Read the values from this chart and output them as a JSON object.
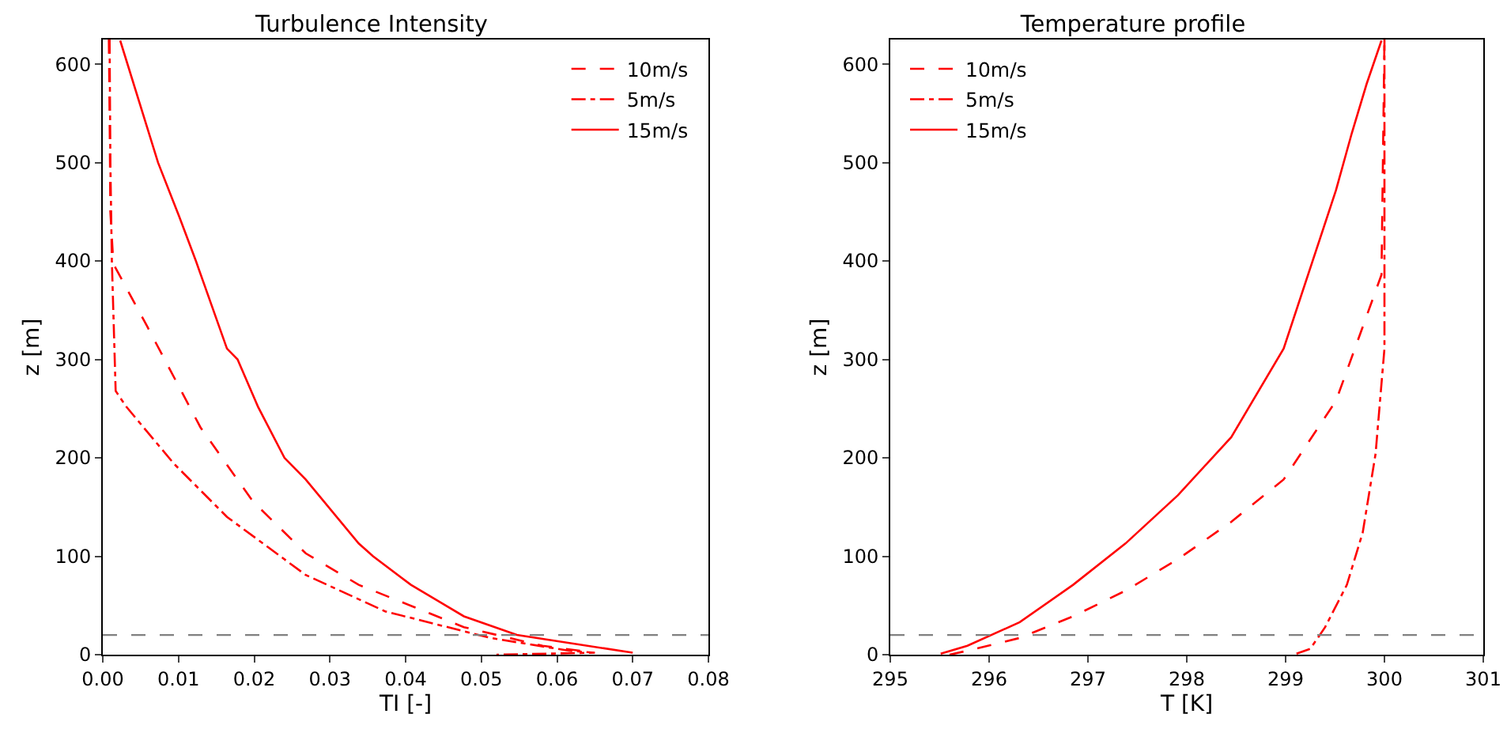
{
  "chart_data": [
    {
      "type": "line",
      "title": "Turbulence Intensity",
      "xlabel": "TI [-]",
      "ylabel": "z [m]",
      "xlim": [
        0,
        0.08
      ],
      "xticks": [
        {
          "value": 0,
          "label": "0.00"
        },
        {
          "value": 0.01,
          "label": "0.01"
        },
        {
          "value": 0.02,
          "label": "0.02"
        },
        {
          "value": 0.03,
          "label": "0.03"
        },
        {
          "value": 0.04,
          "label": "0.04"
        },
        {
          "value": 0.05,
          "label": "0.05"
        },
        {
          "value": 0.06,
          "label": "0.06"
        },
        {
          "value": 0.07,
          "label": "0.07"
        },
        {
          "value": 0.08,
          "label": "0.08"
        }
      ],
      "ylim": [
        0,
        625
      ],
      "yticks": [
        0,
        100,
        200,
        300,
        400,
        500,
        600
      ],
      "grid": false,
      "legend": "top right",
      "ref_lines": [
        {
          "axis": "y",
          "value": 20,
          "color": "#808080",
          "line_style": "dashed"
        }
      ],
      "series": [
        {
          "name": "10m/s",
          "color": "#ff0000",
          "line_style": "dashed",
          "x": [
            0.0008,
            0.0009,
            0.001,
            0.0014,
            0.0059,
            0.0129,
            0.0198,
            0.0268,
            0.0338,
            0.0477,
            0.0581,
            0.064
          ],
          "values": [
            625,
            550,
            450,
            397,
            333,
            231,
            156,
            103,
            71,
            28,
            9,
            3
          ]
        },
        {
          "name": "5m/s",
          "color": "#ff0000",
          "line_style": "dashdot",
          "x": [
            0.0009,
            0.001,
            0.0012,
            0.0017,
            0.0031,
            0.0094,
            0.0164,
            0.0268,
            0.0373,
            0.0512,
            0.0616,
            0.065,
            0.052
          ],
          "values": [
            625,
            500,
            400,
            268,
            252,
            194,
            140,
            81,
            44,
            17,
            4,
            2,
            0
          ]
        },
        {
          "name": "15m/s",
          "color": "#ff0000",
          "line_style": "solid",
          "x": [
            0.0023,
            0.0073,
            0.0101,
            0.0123,
            0.0164,
            0.0178,
            0.0205,
            0.024,
            0.0268,
            0.0338,
            0.0357,
            0.0407,
            0.0477,
            0.0547,
            0.07
          ],
          "values": [
            624,
            500,
            445,
            400,
            311,
            300,
            252,
            200,
            178,
            113,
            100,
            71,
            39,
            20,
            2
          ]
        }
      ]
    },
    {
      "type": "line",
      "title": "Temperature profile",
      "xlabel": "T [K]",
      "ylabel": "z [m]",
      "xlim": [
        295,
        301
      ],
      "xticks": [
        295,
        296,
        297,
        298,
        299,
        300,
        301
      ],
      "ylim": [
        0,
        625
      ],
      "yticks": [
        0,
        100,
        200,
        300,
        400,
        500,
        600
      ],
      "grid": false,
      "legend": "top left",
      "ref_lines": [
        {
          "axis": "y",
          "value": 20,
          "color": "#808080",
          "line_style": "dashed"
        }
      ],
      "series": [
        {
          "name": "10m/s",
          "color": "#ff0000",
          "line_style": "dashed",
          "x": [
            295.6,
            295.78,
            296.31,
            296.85,
            297.38,
            297.91,
            298.45,
            298.98,
            299.51,
            299.78,
            299.97,
            300.0
          ],
          "values": [
            0,
            4,
            17,
            39,
            65,
            97,
            135,
            178,
            258,
            333,
            386,
            625
          ]
        },
        {
          "name": "5m/s",
          "color": "#ff0000",
          "line_style": "dashdot",
          "x": [
            299.11,
            299.25,
            299.4,
            299.62,
            299.78,
            299.91,
            300.0,
            300.0
          ],
          "values": [
            1,
            6,
            28,
            71,
            124,
            204,
            311,
            625
          ]
        },
        {
          "name": "15m/s",
          "color": "#ff0000",
          "line_style": "solid",
          "x": [
            295.51,
            295.78,
            296.31,
            296.85,
            297.38,
            297.91,
            298.45,
            298.98,
            299.51,
            299.67,
            299.82,
            299.97
          ],
          "values": [
            1,
            9,
            33,
            71,
            113,
            162,
            221,
            311,
            472,
            530,
            580,
            624
          ]
        }
      ]
    }
  ]
}
